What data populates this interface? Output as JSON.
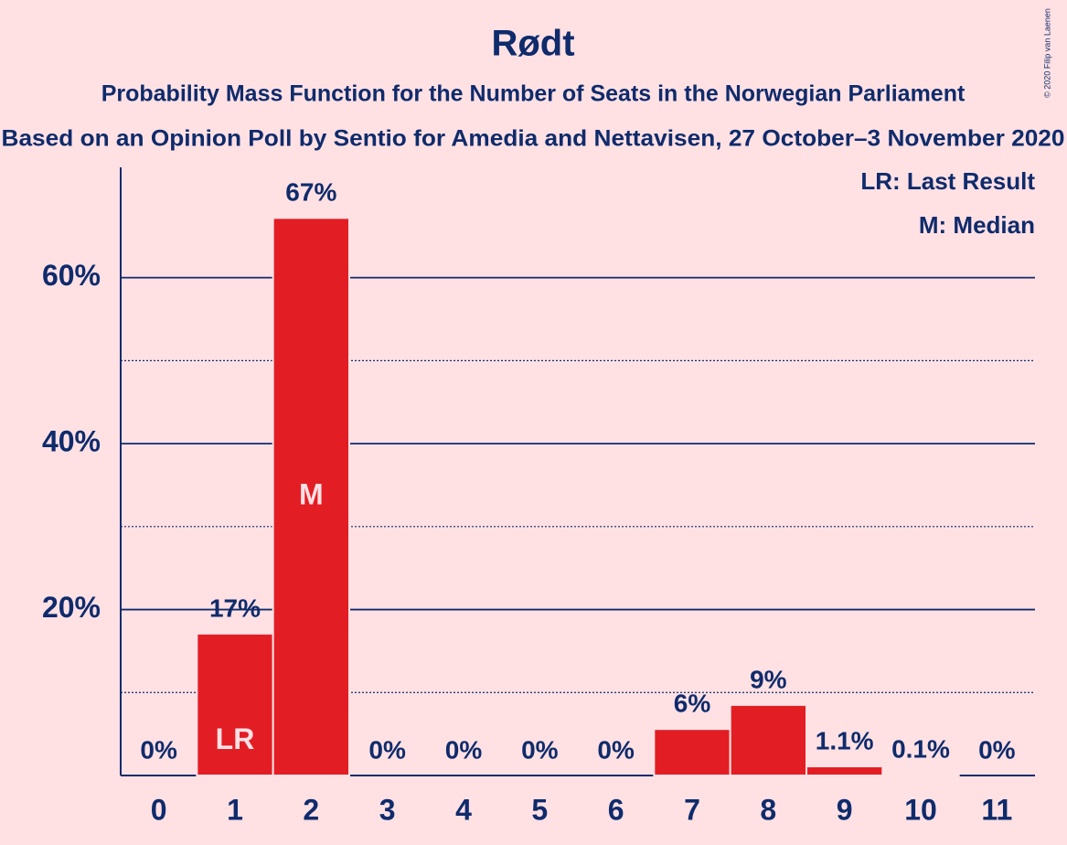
{
  "chart_data": {
    "type": "bar",
    "title": "Rødt",
    "subtitle": "Probability Mass Function for the Number of Seats in the Norwegian Parliament",
    "subtitle2": "Based on an Opinion Poll by Sentio for Amedia and Nettavisen, 27 October–3 November 2020",
    "copyright": "© 2020 Filip van Laenen",
    "categories": [
      "0",
      "1",
      "2",
      "3",
      "4",
      "5",
      "6",
      "7",
      "8",
      "9",
      "10",
      "11"
    ],
    "values": [
      0,
      17.1,
      67.2,
      0,
      0,
      0,
      0,
      5.6,
      8.5,
      1.1,
      0.1,
      0
    ],
    "value_labels": [
      "0%",
      "17%",
      "67%",
      "0%",
      "0%",
      "0%",
      "0%",
      "6%",
      "9%",
      "1.1%",
      "0.1%",
      "0%"
    ],
    "bar_labels": [
      null,
      "LR",
      "M",
      null,
      null,
      null,
      null,
      null,
      null,
      null,
      null,
      null
    ],
    "legend": [
      "LR: Last Result",
      "M: Median"
    ],
    "color": "#e31d24",
    "ylim": [
      0,
      73.3
    ],
    "yticks": [
      {
        "value": 20,
        "label": "20%"
      },
      {
        "value": 40,
        "label": "40%"
      },
      {
        "value": 60,
        "label": "60%"
      }
    ],
    "minor_yticks": [
      10,
      30,
      50
    ],
    "grid": true
  }
}
